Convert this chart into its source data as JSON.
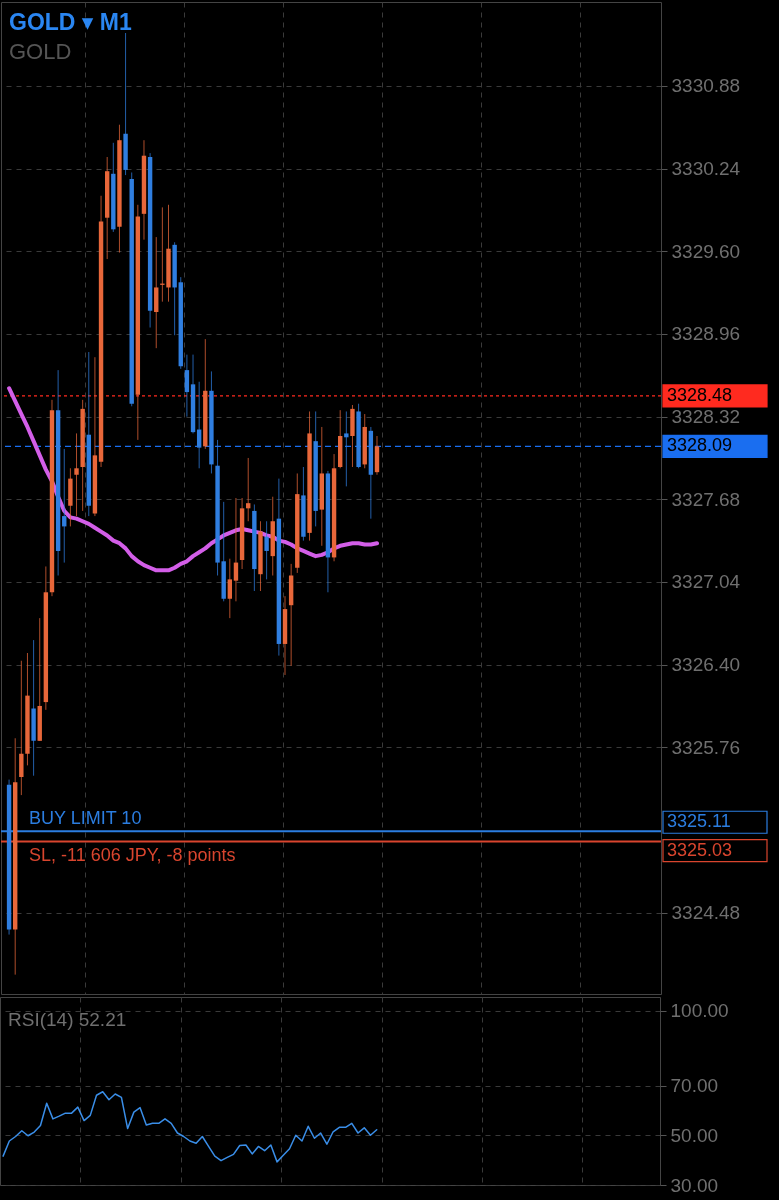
{
  "chart_data": [
    {
      "type": "candlestick",
      "title": "GOLD ▾ M1",
      "subtitle": "GOLD",
      "categories": [
        null,
        null,
        null,
        null,
        null,
        null,
        null,
        null,
        null,
        null,
        null,
        null,
        null,
        null,
        null,
        null,
        null,
        null,
        null,
        null,
        null,
        null,
        null,
        null,
        null,
        null,
        null,
        null,
        null,
        null,
        null,
        null,
        null,
        null,
        null,
        null,
        null,
        null,
        null,
        null,
        null,
        null,
        null,
        null,
        null,
        null,
        null,
        null,
        null,
        null,
        null,
        null,
        null,
        null,
        null,
        null,
        null,
        null,
        null,
        null,
        null,
        null,
        null,
        null,
        null,
        null,
        null,
        null,
        null,
        null,
        null,
        null,
        null,
        null,
        null,
        null,
        null,
        null,
        null,
        null,
        null,
        null,
        null,
        null,
        null,
        null,
        null,
        null,
        null,
        null,
        null,
        null,
        null,
        null,
        null,
        null,
        null,
        null,
        null,
        null,
        null,
        null,
        null,
        null,
        null,
        null
      ],
      "ohlc": [
        [
          3325.47,
          3325.51,
          3324.31,
          3324.35
        ],
        [
          3324.35,
          3325.83,
          3324.0,
          3325.49
        ],
        [
          3325.53,
          3326.43,
          3325.39,
          3325.71
        ],
        [
          3325.71,
          3326.49,
          3325.62,
          3326.16
        ],
        [
          3326.06,
          3326.59,
          3325.54,
          3325.81
        ],
        [
          3325.81,
          3326.76,
          3325.81,
          3326.08
        ],
        [
          3326.11,
          3327.16,
          3326.05,
          3326.96
        ],
        [
          3326.96,
          3328.45,
          3326.93,
          3328.37
        ],
        [
          3328.37,
          3328.68,
          3327.09,
          3327.28
        ],
        [
          3327.55,
          3328.07,
          3327.19,
          3327.47
        ],
        [
          3327.63,
          3327.92,
          3327.47,
          3327.84
        ],
        [
          3327.87,
          3328.19,
          3327.55,
          3327.92
        ],
        [
          3327.93,
          3328.45,
          3327.59,
          3328.38
        ],
        [
          3328.18,
          3328.82,
          3327.55,
          3327.63
        ],
        [
          3327.57,
          3328.78,
          3327.55,
          3328.02
        ],
        [
          3327.97,
          3330.03,
          3327.93,
          3329.83
        ],
        [
          3329.86,
          3330.33,
          3329.54,
          3330.22
        ],
        [
          3330.2,
          3330.44,
          3329.75,
          3329.77
        ],
        [
          3329.79,
          3330.58,
          3329.59,
          3330.46
        ],
        [
          3330.51,
          3331.29,
          3330.19,
          3330.23
        ],
        [
          3330.16,
          3330.21,
          3328.4,
          3328.42
        ],
        [
          3328.49,
          3329.96,
          3328.14,
          3329.87
        ],
        [
          3329.89,
          3330.46,
          3329.69,
          3330.34
        ],
        [
          3330.33,
          3330.36,
          3329.01,
          3329.14
        ],
        [
          3329.13,
          3329.71,
          3328.85,
          3329.32
        ],
        [
          3329.34,
          3329.94,
          3329.21,
          3329.35
        ],
        [
          3329.32,
          3329.96,
          3329.21,
          3329.62
        ],
        [
          3329.65,
          3329.67,
          3328.95,
          3329.32
        ],
        [
          3329.36,
          3329.4,
          3328.69,
          3328.71
        ],
        [
          3328.68,
          3328.8,
          3328.32,
          3328.51
        ],
        [
          3328.57,
          3328.8,
          3328.19,
          3328.2
        ],
        [
          3328.22,
          3328.59,
          3327.92,
          3328.08
        ],
        [
          3328.09,
          3328.92,
          3328.07,
          3328.52
        ],
        [
          3328.52,
          3328.67,
          3327.88,
          3327.95
        ],
        [
          3327.94,
          3328.14,
          3327.09,
          3327.19
        ],
        [
          3327.2,
          3327.66,
          3326.89,
          3326.91
        ],
        [
          3326.91,
          3327.22,
          3326.76,
          3327.06
        ],
        [
          3327.05,
          3327.69,
          3326.89,
          3327.19
        ],
        [
          3327.21,
          3327.69,
          3327.14,
          3327.61
        ],
        [
          3327.61,
          3328.0,
          3327.51,
          3327.65
        ],
        [
          3327.59,
          3327.64,
          3326.97,
          3327.14
        ],
        [
          3327.1,
          3327.51,
          3326.97,
          3327.43
        ],
        [
          3327.39,
          3327.51,
          3327.06,
          3327.28
        ],
        [
          3327.24,
          3327.7,
          3327.09,
          3327.51
        ],
        [
          3327.53,
          3327.84,
          3326.47,
          3326.56
        ],
        [
          3326.56,
          3326.93,
          3326.32,
          3326.83
        ],
        [
          3326.86,
          3327.18,
          3326.39,
          3327.09
        ],
        [
          3327.15,
          3327.88,
          3327.11,
          3327.72
        ],
        [
          3327.71,
          3327.93,
          3327.36,
          3327.39
        ],
        [
          3327.42,
          3328.36,
          3327.36,
          3328.19
        ],
        [
          3328.13,
          3328.36,
          3327.47,
          3327.59
        ],
        [
          3327.6,
          3328.24,
          3327.32,
          3327.88
        ],
        [
          3327.88,
          3327.9,
          3326.96,
          3327.23
        ],
        [
          3327.23,
          3328.03,
          3327.2,
          3327.92
        ],
        [
          3327.93,
          3328.37,
          3327.92,
          3328.17
        ],
        [
          3328.19,
          3328.36,
          3327.78,
          3328.16
        ],
        [
          3328.17,
          3328.41,
          3327.93,
          3328.38
        ],
        [
          3328.36,
          3328.42,
          3327.92,
          3327.93
        ],
        [
          3327.95,
          3328.34,
          3327.92,
          3328.24
        ],
        [
          3328.21,
          3328.24,
          3327.53,
          3327.87
        ],
        [
          3327.89,
          3328.17,
          3327.87,
          3328.09
        ],
        null,
        null,
        null,
        null,
        null,
        null,
        null,
        null,
        null,
        null,
        null,
        null,
        null,
        null,
        null,
        null,
        null,
        null,
        null,
        null,
        null,
        null,
        null,
        null,
        null,
        null,
        null,
        null,
        null,
        null,
        null,
        null,
        null,
        null,
        null,
        null,
        null,
        null,
        null,
        null,
        null,
        null,
        null,
        null,
        null
      ],
      "colors": [
        "#2f7ee0",
        "#e8673a",
        "#e8673a",
        "#e8673a",
        "#2f7ee0",
        "#e8673a",
        "#e8673a",
        "#e8673a",
        "#2f7ee0",
        "#2f7ee0",
        "#e8673a",
        "#e8673a",
        "#e8673a",
        "#2f7ee0",
        "#e8673a",
        "#e8673a",
        "#e8673a",
        "#2f7ee0",
        "#e8673a",
        "#2f7ee0",
        "#2f7ee0",
        "#e8673a",
        "#e8673a",
        "#2f7ee0",
        "#e8673a",
        "#e8673a",
        "#e8673a",
        "#2f7ee0",
        "#2f7ee0",
        "#2f7ee0",
        "#2f7ee0",
        "#2f7ee0",
        "#e8673a",
        "#2f7ee0",
        "#2f7ee0",
        "#2f7ee0",
        "#e8673a",
        "#e8673a",
        "#e8673a",
        "#e8673a",
        "#2f7ee0",
        "#e8673a",
        "#2f7ee0",
        "#e8673a",
        "#2f7ee0",
        "#e8673a",
        "#e8673a",
        "#e8673a",
        "#2f7ee0",
        "#e8673a",
        "#2f7ee0",
        "#e8673a",
        "#2f7ee0",
        "#e8673a",
        "#e8673a",
        "#2f7ee0",
        "#e8673a",
        "#2f7ee0",
        "#e8673a",
        "#2f7ee0",
        "#e8673a",
        null,
        null,
        null,
        null,
        null,
        null,
        null,
        null,
        null,
        null,
        null,
        null,
        null,
        null,
        null,
        null,
        null,
        null,
        null,
        null,
        null,
        null,
        null,
        null,
        null,
        null,
        null,
        null,
        null,
        null,
        null,
        null,
        null,
        null,
        null,
        null,
        null,
        null,
        null,
        null,
        null,
        null,
        null,
        null,
        null
      ],
      "series": [
        {
          "type": "line",
          "color": "#d35ee8",
          "values": [
            3328.54,
            3328.44,
            3328.34,
            3328.24,
            3328.13,
            3328.02,
            3327.91,
            3327.82,
            3327.7,
            3327.59,
            3327.54,
            3327.53,
            3327.51,
            3327.49,
            3327.46,
            3327.43,
            3327.4,
            3327.36,
            3327.34,
            3327.3,
            3327.24,
            3327.2,
            3327.17,
            3327.15,
            3327.13,
            3327.13,
            3327.13,
            3327.15,
            3327.18,
            3327.2,
            3327.24,
            3327.27,
            3327.3,
            3327.34,
            3327.37,
            3327.4,
            3327.42,
            3327.44,
            3327.45,
            3327.44,
            3327.43,
            3327.42,
            3327.4,
            3327.39,
            3327.36,
            3327.35,
            3327.33,
            3327.3,
            3327.28,
            3327.26,
            3327.24,
            3327.25,
            3327.27,
            3327.3,
            3327.32,
            3327.33,
            3327.34,
            3327.34,
            3327.33,
            3327.33,
            3327.34,
            null,
            null,
            null,
            null,
            null,
            null,
            null,
            null,
            null,
            null,
            null,
            null,
            null,
            null,
            null,
            null,
            null,
            null,
            null,
            null,
            null,
            null,
            null,
            null,
            null,
            null,
            null,
            null,
            null,
            null,
            null,
            null,
            null,
            null,
            null,
            null,
            null,
            null,
            null,
            null,
            null,
            null,
            null,
            null,
            null
          ]
        }
      ],
      "ylim": [
        3323.85,
        3331.53
      ],
      "yticks": [
        3324.48,
        3325.76,
        {
          "value": 3326.4,
          "label": "3326.40"
        },
        3327.04,
        3327.68,
        3328.32,
        3328.96,
        {
          "value": 3329.6,
          "label": "3329.60"
        },
        3330.24,
        3330.88
      ],
      "grid": true,
      "tick_labels": "y",
      "ref_lines": [
        {
          "axis": "y",
          "value": 3328.48,
          "label": "3328.48",
          "color": "#ff2a1f",
          "line_style": "dotted"
        },
        {
          "axis": "y",
          "value": 3328.09,
          "label": "3328.09",
          "color": "#1a6ef0",
          "line_style": "dashed"
        },
        {
          "axis": "y",
          "value": 3325.11,
          "label": "3325.11",
          "color": "#2b7de0",
          "line_style": "solid"
        },
        {
          "axis": "y",
          "value": 3325.03,
          "label": "3325.03",
          "color": "#d9452e",
          "line_style": "solid"
        }
      ],
      "annotations": [
        {
          "text": "BUY LIMIT 10",
          "y": 3325.11
        },
        {
          "text": "SL, -11 606 JPY, -8 points",
          "y": 3325.03
        }
      ]
    },
    {
      "type": "line",
      "title": "RSI(14) 52.21",
      "categories": [
        null,
        null,
        null,
        null,
        null,
        null,
        null,
        null,
        null,
        null,
        null,
        null,
        null,
        null,
        null,
        null,
        null,
        null,
        null,
        null,
        null,
        null,
        null,
        null,
        null,
        null,
        null,
        null,
        null,
        null,
        null,
        null,
        null,
        null,
        null,
        null,
        null,
        null,
        null,
        null,
        null,
        null,
        null,
        null,
        null,
        null,
        null,
        null,
        null,
        null,
        null,
        null,
        null,
        null,
        null,
        null,
        null,
        null,
        null,
        null,
        null,
        null,
        null,
        null,
        null,
        null,
        null,
        null,
        null,
        null,
        null,
        null,
        null,
        null,
        null,
        null,
        null,
        null,
        null,
        null,
        null,
        null,
        null,
        null,
        null,
        null,
        null,
        null,
        null,
        null,
        null,
        null,
        null,
        null,
        null,
        null,
        null,
        null,
        null,
        null,
        null,
        null,
        null,
        null,
        null,
        null
      ],
      "series": [
        {
          "color": "#3a8ee8",
          "values": [
            41.6,
            47.7,
            49.5,
            51.8,
            49.8,
            51.3,
            53.9,
            62.9,
            56.6,
            57.7,
            58.9,
            58.9,
            61.3,
            55.9,
            58.0,
            66.1,
            67.5,
            64.3,
            66.6,
            65.2,
            52.7,
            59.3,
            61.1,
            54.1,
            54.8,
            54.8,
            56.6,
            54.8,
            50.9,
            49.5,
            47.7,
            46.8,
            49.5,
            45.5,
            41.6,
            39.8,
            41.1,
            42.3,
            45.9,
            46.1,
            42.5,
            45.5,
            43.8,
            46.1,
            39.3,
            42.0,
            44.6,
            50.0,
            47.7,
            53.6,
            48.8,
            50.9,
            46.4,
            51.4,
            53.2,
            53.2,
            54.8,
            50.9,
            53.0,
            50.0,
            52.2,
            null,
            null,
            null,
            null,
            null,
            null,
            null,
            null,
            null,
            null,
            null,
            null,
            null,
            null,
            null,
            null,
            null,
            null,
            null,
            null,
            null,
            null,
            null,
            null,
            null,
            null,
            null,
            null,
            null,
            null,
            null,
            null,
            null,
            null,
            null,
            null,
            null,
            null,
            null,
            null,
            null,
            null,
            null,
            null,
            null
          ]
        }
      ],
      "ylim": [
        30,
        105.6
      ],
      "yticks": [
        {
          "value": 30,
          "label": "30.00"
        },
        {
          "value": 50,
          "label": "50.00"
        },
        {
          "value": 70,
          "label": "70.00"
        },
        {
          "value": 100,
          "label": "100.00"
        }
      ],
      "grid": true,
      "tick_labels": "y"
    }
  ]
}
